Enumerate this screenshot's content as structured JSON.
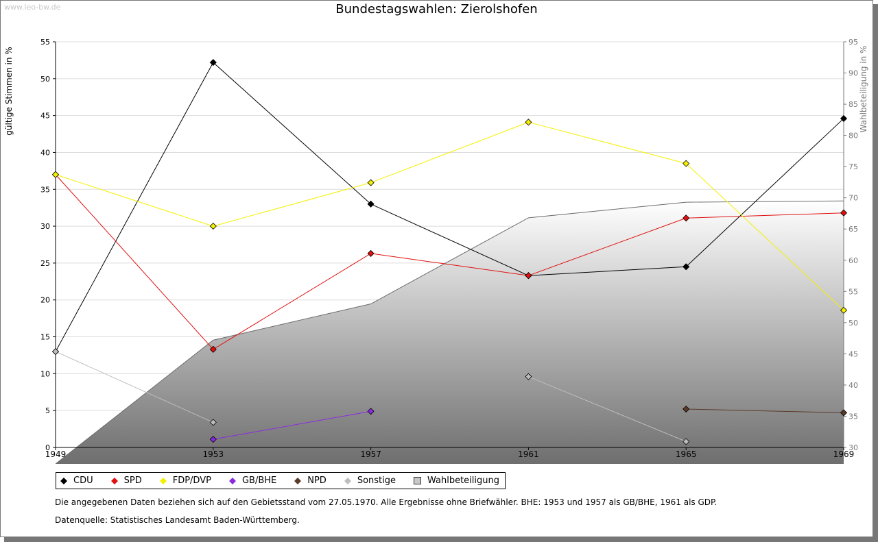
{
  "header": {
    "watermark": "www.leo-bw.de",
    "title": "Bundestagswahlen: Zierolshofen"
  },
  "chart_data": {
    "type": "line",
    "title": "Bundestagswahlen: Zierolshofen",
    "xlabel": "",
    "ylabel": "gültige Stimmen in %",
    "y2label": "Wahlbeteiligung in %",
    "categories": [
      "1949",
      "1953",
      "1957",
      "1961",
      "1965",
      "1969"
    ],
    "ylim": [
      0,
      55
    ],
    "y2lim": [
      30,
      95
    ],
    "yticks": [
      0,
      5,
      10,
      15,
      20,
      25,
      30,
      35,
      40,
      45,
      50,
      55
    ],
    "y2ticks": [
      30,
      35,
      40,
      45,
      50,
      55,
      60,
      65,
      70,
      75,
      80,
      85,
      90,
      95
    ],
    "grid": true,
    "series": [
      {
        "name": "CDU",
        "color": "#000000",
        "values": [
          13.0,
          52.2,
          33.0,
          23.3,
          24.5,
          44.6
        ]
      },
      {
        "name": "SPD",
        "color": "#e01010",
        "values": [
          37.0,
          13.3,
          26.3,
          23.3,
          31.1,
          31.8
        ]
      },
      {
        "name": "FDP/DVP",
        "color": "#f5f000",
        "values": [
          37.0,
          30.0,
          35.9,
          44.1,
          38.5,
          18.6
        ]
      },
      {
        "name": "GB/BHE",
        "color": "#8a2be2",
        "values": [
          null,
          1.1,
          4.9,
          null,
          null,
          null
        ]
      },
      {
        "name": "NPD",
        "color": "#5a3a28",
        "values": [
          null,
          null,
          null,
          null,
          5.2,
          4.7
        ]
      },
      {
        "name": "Sonstige",
        "color": "#bdbdbd",
        "values": [
          13.0,
          3.4,
          null,
          9.6,
          0.8,
          null
        ]
      }
    ],
    "turnout": {
      "name": "Wahlbeteiligung",
      "axis": "right",
      "values": [
        27.5,
        47.2,
        53.0,
        66.8,
        69.3,
        69.5
      ]
    }
  },
  "notes": {
    "line1": "Die angegebenen Daten beziehen sich auf den Gebietsstand vom 27.05.1970. Alle Ergebnisse ohne Briefwähler. BHE: 1953 und 1957 als GB/BHE, 1961 als GDP.",
    "line2": "Datenquelle: Statistisches Landesamt Baden-Württemberg."
  }
}
